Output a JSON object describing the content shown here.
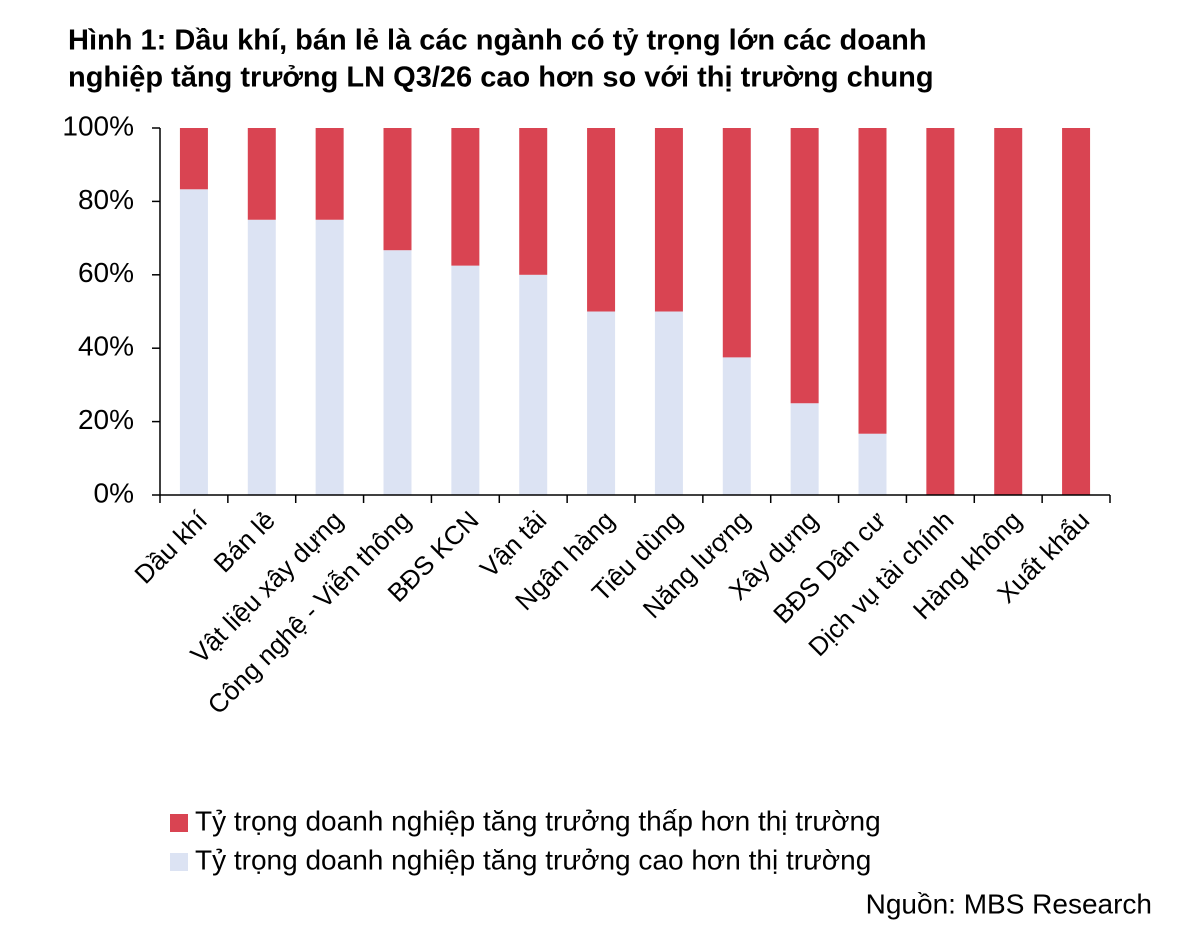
{
  "chart_data": {
    "type": "stacked_bar",
    "title": [
      "Hình 1: Dầu khí, bán lẻ là các ngành có tỷ trọng lớn các doanh",
      "nghiệp tăng trưởng LN Q3/26 cao hơn so với thị trường chung"
    ],
    "categories": [
      "Dầu khí",
      "Bán lẻ",
      "Vật liệu xây dựng",
      "Công nghệ - Viễn thông",
      "BĐS KCN",
      "Vận tải",
      "Ngân hàng",
      "Tiêu dùng",
      "Năng lượng",
      "Xây dựng",
      "BĐS Dân cư",
      "Dịch vụ tài chính",
      "Hàng không",
      "Xuất khẩu"
    ],
    "series": [
      {
        "name": "Tỷ trọng doanh nghiệp tăng trưởng thấp hơn thị trường",
        "color": "#d94452",
        "values": [
          16.7,
          25,
          25,
          33.3,
          37.5,
          40,
          50,
          50,
          62.5,
          75,
          83.3,
          100,
          100,
          100
        ]
      },
      {
        "name": "Tỷ trọng doanh nghiệp tăng trưởng cao hơn thị trường",
        "color": "#dce3f3",
        "values": [
          83.3,
          75,
          75,
          66.7,
          62.5,
          60,
          50,
          50,
          37.5,
          25,
          16.7,
          0,
          0,
          0
        ]
      }
    ],
    "ylim": [
      0,
      100
    ],
    "yticks": [
      {
        "value": 0,
        "label": "0%"
      },
      {
        "value": 20,
        "label": "20%"
      },
      {
        "value": 40,
        "label": "40%"
      },
      {
        "value": 60,
        "label": "60%"
      },
      {
        "value": 80,
        "label": "80%"
      },
      {
        "value": 100,
        "label": "100%"
      }
    ],
    "source": "Nguồn: MBS Research"
  }
}
